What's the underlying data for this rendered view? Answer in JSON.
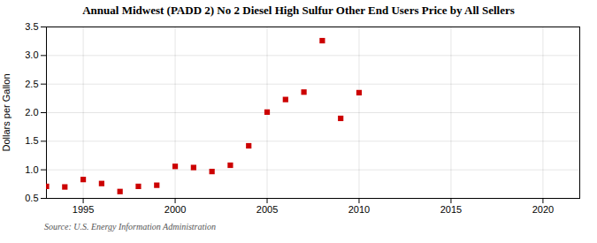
{
  "chart_data": {
    "type": "scatter",
    "title": "Annual Midwest (PADD 2) No 2 Diesel High Sulfur Other End Users Price by All Sellers",
    "ylabel": "Dollars per Gallon",
    "caption": "Source: U.S. Energy Information Administration",
    "x": [
      1993,
      1994,
      1995,
      1996,
      1997,
      1998,
      1999,
      2000,
      2001,
      2002,
      2003,
      2004,
      2005,
      2006,
      2007,
      2008,
      2009,
      2010
    ],
    "values": [
      0.71,
      0.7,
      0.83,
      0.76,
      0.62,
      0.71,
      0.73,
      1.06,
      1.04,
      0.97,
      1.08,
      1.42,
      2.01,
      2.23,
      2.36,
      3.26,
      1.9,
      2.35
    ],
    "color": "#cc0000",
    "marker": "square",
    "xlim": [
      1993,
      2022
    ],
    "ylim": [
      0.5,
      3.5
    ],
    "xticks": [
      1995,
      2000,
      2005,
      2010,
      2015,
      2020
    ],
    "yticks": [
      0.5,
      {
        "value": 1.0,
        "label": "1.0"
      },
      1.5,
      {
        "value": 2.0,
        "label": "2.0"
      },
      2.5,
      {
        "value": 3.0,
        "label": "3.0"
      },
      3.5
    ],
    "grid": true
  }
}
